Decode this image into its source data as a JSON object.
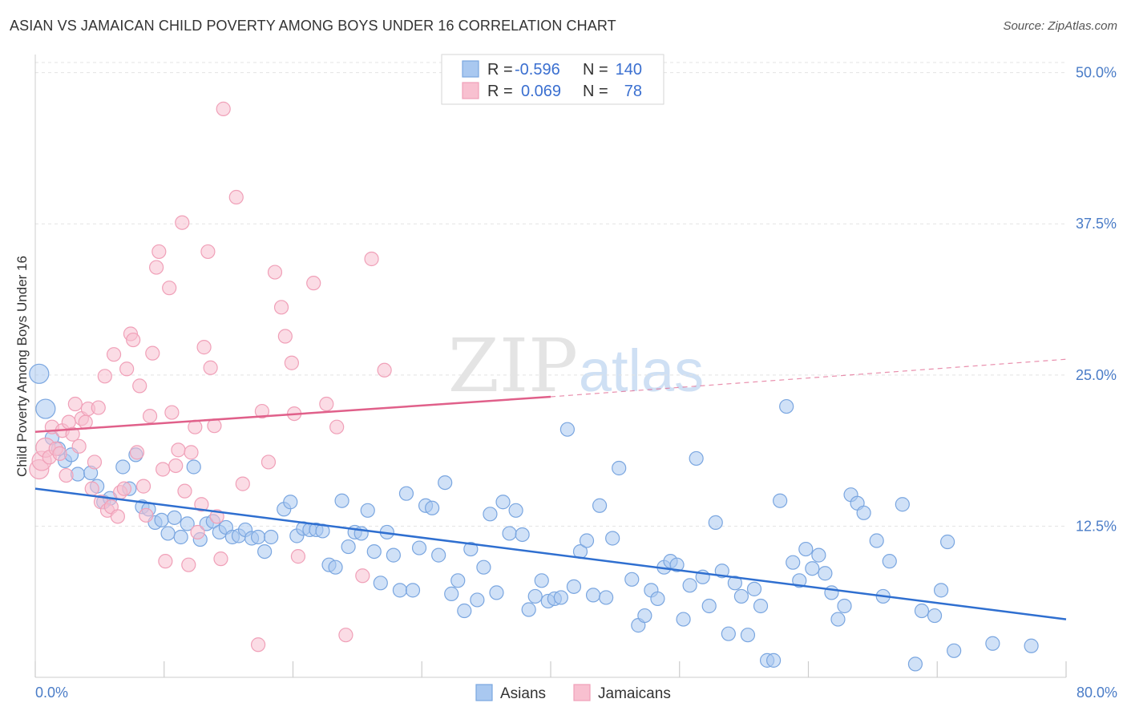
{
  "title": "ASIAN VS JAMAICAN CHILD POVERTY AMONG BOYS UNDER 16 CORRELATION CHART",
  "source": "Source: ZipAtlas.com",
  "watermark": {
    "zip": "ZIP",
    "atlas": "atlas"
  },
  "chart_data": {
    "type": "scatter",
    "xlabel": "",
    "ylabel": "Child Poverty Among Boys Under 16",
    "xlim": [
      0,
      80
    ],
    "ylim": [
      0,
      51.5
    ],
    "x_tick_labels": [
      "0.0%",
      "80.0%"
    ],
    "y_ticks": [
      12.5,
      25.0,
      37.5,
      50.0
    ],
    "y_tick_labels": [
      "12.5%",
      "25.0%",
      "37.5%",
      "50.0%"
    ],
    "grid": "horizontal dashed",
    "legend": {
      "placement": "top-center",
      "entries": [
        {
          "r_label": "R =",
          "r": "-0.596",
          "n_label": "N =",
          "n": "140"
        },
        {
          "r_label": "R =",
          "r": "0.069",
          "n_label": "N =",
          "n": "78"
        }
      ]
    },
    "series": [
      {
        "name": "Asians",
        "color": "#a9c8f0",
        "stroke": "#7aa6e0",
        "line_color": "#2f6fd0",
        "trend": {
          "x0": 0,
          "y0": 15.6,
          "x1": 80,
          "y1": 4.8
        },
        "points": [
          [
            0.3,
            25.1
          ],
          [
            0.8,
            22.2
          ],
          [
            1.3,
            19.8
          ],
          [
            1.8,
            18.9
          ],
          [
            2.3,
            17.9
          ],
          [
            2.8,
            18.4
          ],
          [
            3.3,
            16.8
          ],
          [
            4.3,
            16.9
          ],
          [
            4.8,
            15.8
          ],
          [
            5.3,
            14.5
          ],
          [
            5.8,
            14.8
          ],
          [
            6.8,
            17.4
          ],
          [
            7.3,
            15.6
          ],
          [
            7.8,
            18.4
          ],
          [
            8.3,
            14.1
          ],
          [
            8.8,
            13.9
          ],
          [
            9.3,
            12.8
          ],
          [
            9.8,
            13.0
          ],
          [
            10.3,
            11.9
          ],
          [
            10.8,
            13.2
          ],
          [
            11.3,
            11.6
          ],
          [
            11.8,
            12.7
          ],
          [
            12.3,
            17.4
          ],
          [
            12.8,
            11.4
          ],
          [
            13.3,
            12.7
          ],
          [
            13.8,
            12.9
          ],
          [
            14.3,
            12.0
          ],
          [
            14.8,
            12.4
          ],
          [
            15.3,
            11.6
          ],
          [
            15.8,
            11.7
          ],
          [
            16.3,
            12.2
          ],
          [
            16.8,
            11.5
          ],
          [
            17.3,
            11.6
          ],
          [
            17.8,
            10.4
          ],
          [
            18.3,
            11.6
          ],
          [
            19.3,
            13.9
          ],
          [
            19.8,
            14.5
          ],
          [
            20.3,
            11.7
          ],
          [
            20.8,
            12.3
          ],
          [
            21.3,
            12.2
          ],
          [
            21.8,
            12.2
          ],
          [
            22.3,
            12.1
          ],
          [
            22.8,
            9.3
          ],
          [
            23.3,
            9.1
          ],
          [
            23.8,
            14.6
          ],
          [
            24.3,
            10.8
          ],
          [
            24.8,
            12.0
          ],
          [
            25.3,
            11.9
          ],
          [
            25.8,
            13.8
          ],
          [
            26.3,
            10.4
          ],
          [
            26.8,
            7.8
          ],
          [
            27.3,
            12.0
          ],
          [
            27.8,
            10.1
          ],
          [
            28.3,
            7.2
          ],
          [
            28.8,
            15.2
          ],
          [
            29.3,
            7.2
          ],
          [
            29.8,
            10.7
          ],
          [
            30.3,
            14.2
          ],
          [
            30.8,
            14.0
          ],
          [
            31.3,
            10.1
          ],
          [
            31.8,
            16.1
          ],
          [
            32.3,
            6.9
          ],
          [
            32.8,
            8.0
          ],
          [
            33.3,
            5.5
          ],
          [
            33.8,
            10.6
          ],
          [
            34.3,
            6.4
          ],
          [
            34.8,
            9.1
          ],
          [
            35.3,
            13.5
          ],
          [
            35.8,
            7.0
          ],
          [
            36.3,
            14.5
          ],
          [
            36.8,
            11.9
          ],
          [
            37.3,
            13.8
          ],
          [
            37.8,
            11.8
          ],
          [
            38.3,
            5.6
          ],
          [
            38.8,
            6.7
          ],
          [
            39.3,
            8.0
          ],
          [
            39.8,
            6.3
          ],
          [
            40.3,
            6.5
          ],
          [
            40.8,
            6.6
          ],
          [
            41.3,
            20.5
          ],
          [
            41.8,
            7.5
          ],
          [
            42.3,
            10.4
          ],
          [
            42.8,
            11.3
          ],
          [
            43.3,
            6.8
          ],
          [
            43.8,
            14.2
          ],
          [
            44.3,
            6.6
          ],
          [
            44.8,
            11.5
          ],
          [
            45.3,
            17.3
          ],
          [
            46.3,
            8.1
          ],
          [
            46.8,
            4.3
          ],
          [
            47.3,
            5.1
          ],
          [
            47.8,
            7.2
          ],
          [
            48.3,
            6.5
          ],
          [
            48.8,
            9.1
          ],
          [
            49.3,
            9.6
          ],
          [
            49.8,
            9.3
          ],
          [
            50.3,
            4.8
          ],
          [
            50.8,
            7.6
          ],
          [
            51.3,
            18.1
          ],
          [
            51.8,
            8.3
          ],
          [
            52.3,
            5.9
          ],
          [
            52.8,
            12.8
          ],
          [
            53.3,
            8.8
          ],
          [
            53.8,
            3.6
          ],
          [
            54.3,
            7.8
          ],
          [
            54.8,
            6.7
          ],
          [
            55.3,
            3.5
          ],
          [
            55.8,
            7.3
          ],
          [
            56.3,
            5.9
          ],
          [
            56.8,
            1.4
          ],
          [
            57.3,
            1.4
          ],
          [
            57.8,
            14.6
          ],
          [
            58.3,
            22.4
          ],
          [
            58.8,
            9.5
          ],
          [
            59.3,
            8.0
          ],
          [
            59.8,
            10.6
          ],
          [
            60.3,
            9.0
          ],
          [
            60.8,
            10.1
          ],
          [
            61.3,
            8.6
          ],
          [
            61.8,
            7.0
          ],
          [
            62.3,
            4.8
          ],
          [
            62.8,
            5.9
          ],
          [
            63.3,
            15.1
          ],
          [
            63.8,
            14.4
          ],
          [
            64.3,
            13.6
          ],
          [
            65.3,
            11.3
          ],
          [
            65.8,
            6.7
          ],
          [
            66.3,
            9.6
          ],
          [
            67.3,
            14.3
          ],
          [
            68.3,
            1.1
          ],
          [
            68.8,
            5.5
          ],
          [
            69.8,
            5.1
          ],
          [
            70.3,
            7.2
          ],
          [
            70.8,
            11.2
          ],
          [
            71.3,
            2.2
          ],
          [
            74.3,
            2.8
          ],
          [
            77.3,
            2.6
          ]
        ]
      },
      {
        "name": "Jamaicans",
        "color": "#f8c0d0",
        "stroke": "#f0a0b8",
        "line_color": "#e0608a",
        "trend": {
          "x0": 0,
          "y0": 20.3,
          "x1": 40,
          "y1": 23.2,
          "x_dash_end": 80,
          "y_dash_end": 26.3
        },
        "points": [
          [
            0.3,
            17.2
          ],
          [
            0.5,
            17.9
          ],
          [
            0.8,
            19.0
          ],
          [
            1.1,
            18.2
          ],
          [
            1.3,
            20.7
          ],
          [
            1.6,
            18.9
          ],
          [
            1.9,
            18.5
          ],
          [
            2.1,
            20.4
          ],
          [
            2.4,
            16.7
          ],
          [
            2.6,
            21.1
          ],
          [
            2.9,
            20.1
          ],
          [
            3.1,
            22.6
          ],
          [
            3.4,
            19.1
          ],
          [
            3.6,
            21.4
          ],
          [
            3.9,
            21.1
          ],
          [
            4.1,
            22.2
          ],
          [
            4.4,
            15.6
          ],
          [
            4.6,
            17.8
          ],
          [
            4.9,
            22.3
          ],
          [
            5.1,
            14.5
          ],
          [
            5.4,
            24.9
          ],
          [
            5.6,
            13.8
          ],
          [
            5.9,
            14.1
          ],
          [
            6.1,
            26.7
          ],
          [
            6.4,
            13.3
          ],
          [
            6.6,
            15.3
          ],
          [
            6.9,
            15.6
          ],
          [
            7.1,
            25.5
          ],
          [
            7.4,
            28.4
          ],
          [
            7.6,
            27.9
          ],
          [
            7.9,
            18.6
          ],
          [
            8.1,
            24.1
          ],
          [
            8.4,
            15.8
          ],
          [
            8.6,
            13.4
          ],
          [
            8.9,
            21.6
          ],
          [
            9.1,
            26.8
          ],
          [
            9.4,
            33.9
          ],
          [
            9.6,
            35.2
          ],
          [
            9.9,
            17.2
          ],
          [
            10.1,
            9.6
          ],
          [
            10.4,
            32.2
          ],
          [
            10.6,
            21.9
          ],
          [
            10.9,
            17.5
          ],
          [
            11.1,
            18.8
          ],
          [
            11.4,
            37.6
          ],
          [
            11.6,
            15.4
          ],
          [
            11.9,
            9.3
          ],
          [
            12.1,
            18.6
          ],
          [
            12.4,
            20.7
          ],
          [
            12.6,
            12.0
          ],
          [
            12.9,
            14.3
          ],
          [
            13.1,
            27.3
          ],
          [
            13.4,
            35.2
          ],
          [
            13.6,
            25.6
          ],
          [
            13.9,
            20.8
          ],
          [
            14.1,
            13.3
          ],
          [
            14.4,
            9.8
          ],
          [
            14.6,
            47.0
          ],
          [
            15.6,
            39.7
          ],
          [
            16.1,
            16.0
          ],
          [
            17.3,
            2.7
          ],
          [
            17.6,
            22.0
          ],
          [
            18.1,
            17.8
          ],
          [
            18.6,
            33.5
          ],
          [
            19.1,
            30.6
          ],
          [
            19.4,
            28.2
          ],
          [
            19.9,
            26.0
          ],
          [
            20.1,
            21.8
          ],
          [
            20.4,
            10.0
          ],
          [
            21.6,
            32.6
          ],
          [
            22.6,
            22.6
          ],
          [
            23.4,
            20.7
          ],
          [
            24.1,
            3.5
          ],
          [
            25.4,
            8.4
          ],
          [
            26.1,
            34.6
          ],
          [
            27.1,
            25.4
          ]
        ]
      }
    ]
  },
  "bottom_legend": [
    {
      "label": "Asians",
      "color": "#a9c8f0",
      "stroke": "#7aa6e0"
    },
    {
      "label": "Jamaicans",
      "color": "#f8c0d0",
      "stroke": "#f0a0b8"
    }
  ]
}
